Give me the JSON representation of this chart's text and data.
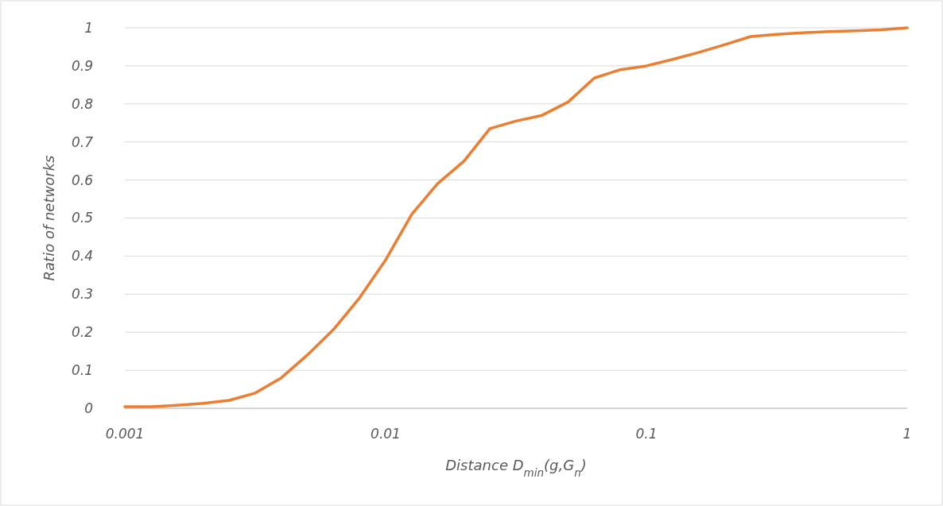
{
  "chart_data": {
    "type": "line",
    "xlabel": "Distance D$_{min}$(g,G$_{n}$)",
    "ylabel": "Ratio of networks",
    "log": "x",
    "grid": "y",
    "marker": "none",
    "line_style": "solid",
    "xlim": [
      0.001,
      1
    ],
    "xticks": [
      0.001,
      0.01,
      0.1,
      1
    ],
    "ylim": [
      0,
      1
    ],
    "yticks": [
      0,
      0.1,
      0.2,
      0.3,
      0.4,
      0.5,
      0.6,
      0.7,
      0.8,
      0.9,
      1
    ],
    "series": [
      {
        "color": "#ed7d31",
        "x": [
          0.001,
          0.00126,
          0.00158,
          0.002,
          0.00251,
          0.00316,
          0.00398,
          0.00501,
          0.00631,
          0.00794,
          0.01,
          0.0126,
          0.0158,
          0.02,
          0.0251,
          0.0316,
          0.0398,
          0.0501,
          0.0631,
          0.0794,
          0.1,
          0.126,
          0.158,
          0.2,
          0.251,
          0.316,
          0.398,
          0.501,
          0.631,
          0.794,
          1
        ],
        "values": [
          0.004,
          0.004,
          0.008,
          0.013,
          0.021,
          0.04,
          0.08,
          0.14,
          0.207,
          0.29,
          0.39,
          0.51,
          0.59,
          0.65,
          0.735,
          0.755,
          0.77,
          0.805,
          0.868,
          0.89,
          0.9,
          0.917,
          0.935,
          0.956,
          0.977,
          0.983,
          0.987,
          0.99,
          0.992,
          0.995,
          1.0
        ]
      }
    ]
  }
}
